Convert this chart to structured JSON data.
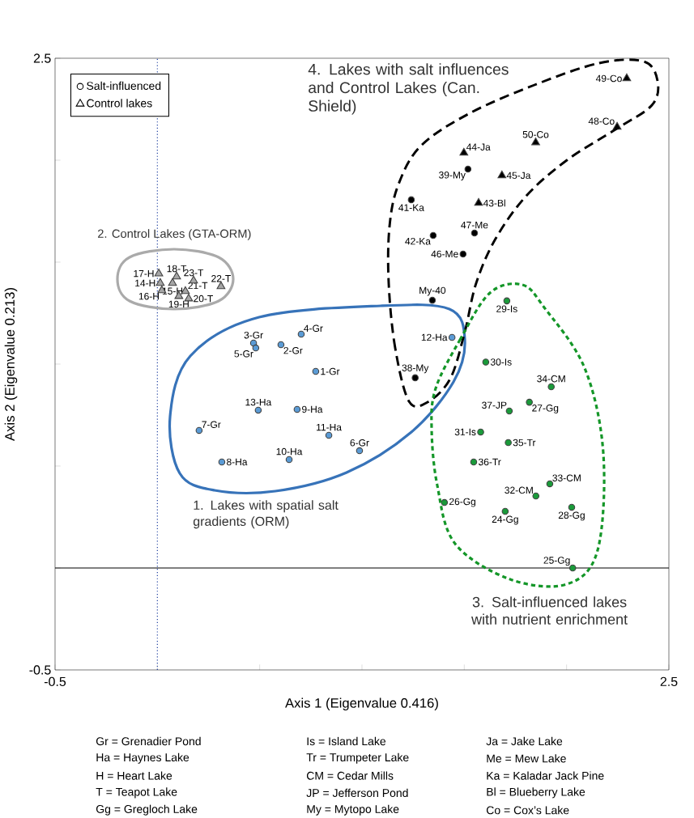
{
  "chart_data": {
    "type": "scatter",
    "xlabel": "Axis 1 (Eigenvalue 0.416)",
    "ylabel": "Axis 2 (Eigenvalue 0.213)",
    "xlim": [
      -0.5,
      2.5
    ],
    "ylim": [
      -0.5,
      2.5
    ],
    "xticks": [
      -0.5,
      {
        "value": 0,
        "label": null
      },
      {
        "value": 0.5,
        "label": null
      },
      {
        "value": 1,
        "label": null
      },
      {
        "value": 1.5,
        "label": null
      },
      {
        "value": 2,
        "label": null
      },
      2.5
    ],
    "yticks": [
      -0.5,
      {
        "value": 0,
        "label": null
      },
      {
        "value": 0.5,
        "label": null
      },
      {
        "value": 1,
        "label": null
      },
      {
        "value": 1.5,
        "label": null
      },
      {
        "value": 2,
        "label": null
      },
      2.5
    ],
    "grid": false,
    "legend": "top left",
    "ref_lines": [
      {
        "axis": "y",
        "value": 0,
        "color": "#000000",
        "line_style": "solid"
      },
      {
        "axis": "x",
        "value": 0,
        "color": "#1f3f9f",
        "line_style": "dotted"
      }
    ],
    "series": [
      {
        "name": "Salt-influenced",
        "marker": "circle",
        "x": [
          0.774,
          0.604,
          0.47,
          0.703,
          0.481,
          0.988,
          0.204,
          0.315,
          0.683,
          0.644,
          0.838,
          1.44,
          0.493,
          1.7,
          2.03,
          1.403,
          1.818,
          2.025,
          1.708,
          1.605,
          1.58,
          1.85,
          1.918,
          1.925,
          1.715,
          1.546,
          1.72,
          1.26,
          1.518,
          1.344,
          1.241,
          1.348,
          1.494,
          1.55
        ],
        "values": [
          0.964,
          1.095,
          1.103,
          1.147,
          1.079,
          0.575,
          0.675,
          0.52,
          0.778,
          0.532,
          0.651,
          1.131,
          0.774,
          0.278,
          0.0,
          0.321,
          0.813,
          0.298,
          1.31,
          1.01,
          0.667,
          0.353,
          0.413,
          0.889,
          0.615,
          0.52,
          0.77,
          0.933,
          1.956,
          1.313,
          1.806,
          1.631,
          1.54,
          1.643
        ],
        "colors": [
          "#5b9bd5",
          "#5b9bd5",
          "#5b9bd5",
          "#5b9bd5",
          "#5b9bd5",
          "#5b9bd5",
          "#5b9bd5",
          "#5b9bd5",
          "#5b9bd5",
          "#5b9bd5",
          "#5b9bd5",
          "#5b9bd5",
          "#5b9bd5",
          "#1a9a3a",
          "#1a9a3a",
          "#1a9a3a",
          "#1a9a3a",
          "#1a9a3a",
          "#1a9a3a",
          "#1a9a3a",
          "#1a9a3a",
          "#1a9a3a",
          "#1a9a3a",
          "#1a9a3a",
          "#1a9a3a",
          "#1a9a3a",
          "#1a9a3a",
          "#000000",
          "#000000",
          "#000000",
          "#000000",
          "#000000",
          "#000000",
          "#000000"
        ]
      },
      {
        "name": "Control lakes",
        "marker": "triangle",
        "x": [
          0.014,
          0.074,
          0.022,
          0.007,
          0.094,
          0.105,
          0.153,
          0.137,
          0.311,
          0.177,
          1.57,
          1.498,
          1.684,
          2.247,
          2.294,
          1.849
        ],
        "values": [
          1.397,
          1.397,
          1.361,
          1.444,
          1.429,
          1.333,
          1.321,
          1.357,
          1.381,
          1.409,
          1.79,
          2.036,
          1.925,
          2.163,
          2.401,
          2.087
        ],
        "colors": [
          "#a6a6a6",
          "#a6a6a6",
          "#a6a6a6",
          "#a6a6a6",
          "#a6a6a6",
          "#a6a6a6",
          "#a6a6a6",
          "#a6a6a6",
          "#a6a6a6",
          "#a6a6a6",
          "#000000",
          "#000000",
          "#000000",
          "#000000",
          "#000000",
          "#000000"
        ]
      }
    ],
    "annotations": [
      {
        "text": "1-Gr",
        "x": 0.774,
        "y": 0.964
      },
      {
        "text": "2-Gr",
        "x": 0.604,
        "y": 1.095
      },
      {
        "text": "3-Gr",
        "x": 0.47,
        "y": 1.103
      },
      {
        "text": "4-Gr",
        "x": 0.703,
        "y": 1.147
      },
      {
        "text": "5-Gr",
        "x": 0.481,
        "y": 1.079
      },
      {
        "text": "6-Gr",
        "x": 0.988,
        "y": 0.575
      },
      {
        "text": "7-Gr",
        "x": 0.204,
        "y": 0.675
      },
      {
        "text": "8-Ha",
        "x": 0.315,
        "y": 0.52
      },
      {
        "text": "9-Ha",
        "x": 0.683,
        "y": 0.778
      },
      {
        "text": "10-Ha",
        "x": 0.644,
        "y": 0.532
      },
      {
        "text": "11-Ha",
        "x": 0.838,
        "y": 0.651
      },
      {
        "text": "12-Ha",
        "x": 1.44,
        "y": 1.131
      },
      {
        "text": "13-Ha",
        "x": 0.493,
        "y": 0.774
      },
      {
        "text": "14-H",
        "x": 0.014,
        "y": 1.397
      },
      {
        "text": "15-H",
        "x": 0.074,
        "y": 1.397
      },
      {
        "text": "16-H",
        "x": 0.022,
        "y": 1.361
      },
      {
        "text": "17-H",
        "x": 0.007,
        "y": 1.444
      },
      {
        "text": "18-T",
        "x": 0.094,
        "y": 1.429
      },
      {
        "text": "19-H",
        "x": 0.105,
        "y": 1.333
      },
      {
        "text": "20-T",
        "x": 0.153,
        "y": 1.321
      },
      {
        "text": "21-T",
        "x": 0.137,
        "y": 1.357
      },
      {
        "text": "22-T",
        "x": 0.311,
        "y": 1.381
      },
      {
        "text": "23-T",
        "x": 0.177,
        "y": 1.409
      },
      {
        "text": "24-Gg",
        "x": 1.7,
        "y": 0.278
      },
      {
        "text": "25-Gg",
        "x": 2.03,
        "y": 0.0
      },
      {
        "text": "26-Gg",
        "x": 1.403,
        "y": 0.321
      },
      {
        "text": "27-Gg",
        "x": 1.818,
        "y": 0.813
      },
      {
        "text": "28-Gg",
        "x": 2.025,
        "y": 0.298
      },
      {
        "text": "29-Is",
        "x": 1.708,
        "y": 1.31
      },
      {
        "text": "30-Is",
        "x": 1.605,
        "y": 1.01
      },
      {
        "text": "31-Is",
        "x": 1.58,
        "y": 0.667
      },
      {
        "text": "32-CM",
        "x": 1.85,
        "y": 0.353
      },
      {
        "text": "33-CM",
        "x": 1.918,
        "y": 0.413
      },
      {
        "text": "34-CM",
        "x": 1.925,
        "y": 0.889
      },
      {
        "text": "35-Tr",
        "x": 1.715,
        "y": 0.615
      },
      {
        "text": "36-Tr",
        "x": 1.546,
        "y": 0.52
      },
      {
        "text": "37-JP",
        "x": 1.72,
        "y": 0.77
      },
      {
        "text": "38-My",
        "x": 1.26,
        "y": 0.933
      },
      {
        "text": "39-My",
        "x": 1.518,
        "y": 1.956
      },
      {
        "text": "My-40",
        "x": 1.344,
        "y": 1.313
      },
      {
        "text": "41-Ka",
        "x": 1.241,
        "y": 1.806
      },
      {
        "text": "42-Ka",
        "x": 1.348,
        "y": 1.631
      },
      {
        "text": "43-Bl",
        "x": 1.57,
        "y": 1.79
      },
      {
        "text": "44-Ja",
        "x": 1.498,
        "y": 2.036
      },
      {
        "text": "45-Ja",
        "x": 1.684,
        "y": 1.925
      },
      {
        "text": "46-Me",
        "x": 1.494,
        "y": 1.54
      },
      {
        "text": "47-Me",
        "x": 1.55,
        "y": 1.643
      },
      {
        "text": "48-Co",
        "x": 2.247,
        "y": 2.163
      },
      {
        "text": "49-Co",
        "x": 2.294,
        "y": 2.401
      },
      {
        "text": "50-Co",
        "x": 1.849,
        "y": 2.087
      },
      "1. Lakes with spatial salt gradients (ORM)",
      "2. Control Lakes (GTA-ORM)",
      "3. Salt-influenced lakes with nutrient enrichment",
      "4. Lakes with salt influences and Control Lakes (Can. Shield)",
      "Gr = Grenadier Pond",
      "Is = Island Lake",
      "Ja = Jake Lake",
      "Ha = Haynes Lake",
      "Tr = Trumpeter Lake",
      "Me = Mew Lake",
      "H = Heart Lake",
      "CM = Cedar Mills",
      "Ka = Kaladar Jack Pine",
      "T = Teapot Lake",
      "JP = Jefferson Pond",
      "Bl = Blueberry Lake",
      "Gg = Gregloch Lake",
      "My = Mytopo Lake",
      "Co = Cox’s Lake"
    ]
  }
}
